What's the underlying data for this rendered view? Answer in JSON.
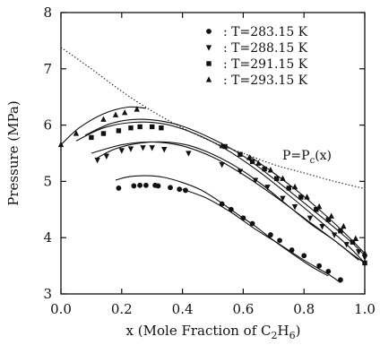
{
  "chart_data": {
    "type": "scatter",
    "xlabel_main": "x (Mole Fraction of C",
    "xlabel_sub": "2",
    "xlabel_mid": "H",
    "xlabel_sub2": "6",
    "xlabel_end": ")",
    "ylabel": "Pressure (MPa)",
    "xlim": [
      0.0,
      1.0
    ],
    "ylim": [
      3,
      8
    ],
    "xticks": [
      0.0,
      0.2,
      0.4,
      0.6,
      0.8,
      1.0
    ],
    "xtick_labels": [
      "0.0",
      "0.2",
      "0.4",
      "0.6",
      "0.8",
      "1.0"
    ],
    "yticks": [
      3,
      4,
      5,
      6,
      7,
      8
    ],
    "ytick_labels": [
      "3",
      "4",
      "5",
      "6",
      "7",
      "8"
    ],
    "legend_position": "top-right",
    "annotation": "P=P",
    "annotation_sub": "c",
    "annotation_end": "(x)",
    "critical_curve": {
      "style": "dotted",
      "x": [
        0.0,
        0.1,
        0.2,
        0.3,
        0.4,
        0.5,
        0.6,
        0.7,
        0.8,
        0.9,
        1.0
      ],
      "y": [
        7.38,
        7.0,
        6.6,
        6.25,
        5.95,
        5.7,
        5.5,
        5.3,
        5.15,
        5.0,
        4.87
      ]
    },
    "series": [
      {
        "name": "T=283.15 K",
        "marker": "circle",
        "label_prefix": ":",
        "points": [
          [
            0.19,
            4.88
          ],
          [
            0.24,
            4.92
          ],
          [
            0.26,
            4.93
          ],
          [
            0.28,
            4.93
          ],
          [
            0.31,
            4.93
          ],
          [
            0.32,
            4.92
          ],
          [
            0.36,
            4.89
          ],
          [
            0.39,
            4.86
          ],
          [
            0.41,
            4.84
          ],
          [
            0.53,
            4.6
          ],
          [
            0.56,
            4.5
          ],
          [
            0.6,
            4.35
          ],
          [
            0.63,
            4.25
          ],
          [
            0.69,
            4.05
          ],
          [
            0.72,
            3.95
          ],
          [
            0.76,
            3.78
          ],
          [
            0.8,
            3.68
          ],
          [
            0.85,
            3.5
          ],
          [
            0.88,
            3.4
          ],
          [
            0.92,
            3.25
          ]
        ],
        "curves": [
          [
            [
              0.18,
              5.02
            ],
            [
              0.22,
              5.08
            ],
            [
              0.28,
              5.1
            ],
            [
              0.34,
              5.07
            ],
            [
              0.4,
              4.98
            ],
            [
              0.46,
              4.85
            ],
            [
              0.52,
              4.65
            ],
            [
              0.58,
              4.42
            ],
            [
              0.64,
              4.2
            ],
            [
              0.7,
              3.95
            ],
            [
              0.76,
              3.72
            ],
            [
              0.82,
              3.5
            ],
            [
              0.88,
              3.32
            ]
          ],
          [
            [
              0.4,
              4.86
            ],
            [
              0.48,
              4.7
            ],
            [
              0.56,
              4.45
            ],
            [
              0.64,
              4.15
            ],
            [
              0.72,
              3.88
            ],
            [
              0.8,
              3.6
            ],
            [
              0.88,
              3.35
            ],
            [
              0.92,
              3.2
            ]
          ]
        ]
      },
      {
        "name": "T=288.15 K",
        "marker": "triangle-down",
        "label_prefix": ":",
        "points": [
          [
            0.12,
            5.38
          ],
          [
            0.15,
            5.45
          ],
          [
            0.2,
            5.55
          ],
          [
            0.23,
            5.58
          ],
          [
            0.27,
            5.6
          ],
          [
            0.3,
            5.6
          ],
          [
            0.34,
            5.57
          ],
          [
            0.42,
            5.5
          ],
          [
            0.53,
            5.3
          ],
          [
            0.59,
            5.18
          ],
          [
            0.64,
            5.02
          ],
          [
            0.68,
            4.9
          ],
          [
            0.73,
            4.7
          ],
          [
            0.77,
            4.55
          ],
          [
            0.82,
            4.35
          ],
          [
            0.86,
            4.2
          ],
          [
            0.9,
            4.05
          ],
          [
            0.94,
            3.88
          ],
          [
            0.98,
            3.75
          ],
          [
            1.0,
            3.65
          ]
        ],
        "curves": [
          [
            [
              0.12,
              5.42
            ],
            [
              0.18,
              5.58
            ],
            [
              0.26,
              5.68
            ],
            [
              0.34,
              5.7
            ],
            [
              0.42,
              5.64
            ],
            [
              0.5,
              5.48
            ],
            [
              0.58,
              5.25
            ],
            [
              0.66,
              4.95
            ],
            [
              0.74,
              4.6
            ],
            [
              0.82,
              4.25
            ],
            [
              0.9,
              3.95
            ],
            [
              0.96,
              3.7
            ],
            [
              1.0,
              3.55
            ]
          ],
          [
            [
              0.1,
              5.5
            ],
            [
              0.2,
              5.65
            ],
            [
              0.3,
              5.7
            ],
            [
              0.4,
              5.63
            ],
            [
              0.5,
              5.43
            ],
            [
              0.6,
              5.12
            ],
            [
              0.7,
              4.75
            ],
            [
              0.8,
              4.35
            ],
            [
              0.9,
              3.95
            ],
            [
              0.98,
              3.6
            ]
          ]
        ]
      },
      {
        "name": "T=291.15 K",
        "marker": "square",
        "label_prefix": ":",
        "points": [
          [
            0.1,
            5.78
          ],
          [
            0.14,
            5.85
          ],
          [
            0.19,
            5.9
          ],
          [
            0.23,
            5.95
          ],
          [
            0.26,
            5.97
          ],
          [
            0.3,
            5.97
          ],
          [
            0.33,
            5.95
          ],
          [
            0.54,
            5.62
          ],
          [
            0.59,
            5.48
          ],
          [
            0.63,
            5.35
          ],
          [
            0.67,
            5.22
          ],
          [
            0.71,
            5.05
          ],
          [
            0.75,
            4.88
          ],
          [
            0.79,
            4.72
          ],
          [
            0.84,
            4.5
          ],
          [
            0.88,
            4.32
          ],
          [
            0.92,
            4.12
          ],
          [
            0.96,
            3.92
          ],
          [
            1.0,
            3.55
          ]
        ],
        "curves": [
          [
            [
              0.08,
              5.82
            ],
            [
              0.16,
              6.02
            ],
            [
              0.24,
              6.1
            ],
            [
              0.32,
              6.08
            ],
            [
              0.4,
              5.98
            ],
            [
              0.5,
              5.75
            ],
            [
              0.6,
              5.45
            ],
            [
              0.7,
              5.05
            ],
            [
              0.8,
              4.62
            ],
            [
              0.9,
              4.18
            ],
            [
              0.96,
              3.9
            ],
            [
              1.0,
              3.68
            ]
          ],
          [
            [
              0.05,
              5.72
            ],
            [
              0.14,
              5.95
            ],
            [
              0.24,
              6.05
            ],
            [
              0.34,
              6.02
            ],
            [
              0.44,
              5.85
            ],
            [
              0.54,
              5.58
            ],
            [
              0.64,
              5.22
            ],
            [
              0.74,
              4.8
            ],
            [
              0.84,
              4.35
            ],
            [
              0.94,
              3.88
            ],
            [
              1.0,
              3.55
            ]
          ]
        ]
      },
      {
        "name": "T=293.15 K",
        "marker": "triangle-up",
        "label_prefix": ":",
        "points": [
          [
            0.0,
            5.65
          ],
          [
            0.05,
            5.85
          ],
          [
            0.14,
            6.1
          ],
          [
            0.18,
            6.18
          ],
          [
            0.21,
            6.22
          ],
          [
            0.25,
            6.28
          ],
          [
            0.53,
            5.63
          ],
          [
            0.62,
            5.42
          ],
          [
            0.65,
            5.32
          ],
          [
            0.69,
            5.2
          ],
          [
            0.73,
            5.05
          ],
          [
            0.77,
            4.9
          ],
          [
            0.81,
            4.72
          ],
          [
            0.85,
            4.55
          ],
          [
            0.89,
            4.38
          ],
          [
            0.93,
            4.2
          ],
          [
            0.97,
            3.98
          ],
          [
            1.0,
            3.72
          ]
        ],
        "curves": [
          [
            [
              0.0,
              5.65
            ],
            [
              0.06,
              5.95
            ],
            [
              0.14,
              6.2
            ],
            [
              0.22,
              6.32
            ],
            [
              0.28,
              6.3
            ]
          ],
          [
            [
              0.62,
              5.45
            ],
            [
              0.7,
              5.15
            ],
            [
              0.78,
              4.82
            ],
            [
              0.86,
              4.45
            ],
            [
              0.94,
              4.05
            ],
            [
              1.0,
              3.72
            ]
          ]
        ]
      }
    ]
  }
}
